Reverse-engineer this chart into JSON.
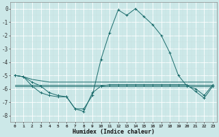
{
  "x": [
    0,
    1,
    2,
    3,
    4,
    5,
    6,
    7,
    8,
    9,
    10,
    11,
    12,
    13,
    14,
    15,
    16,
    17,
    18,
    19,
    20,
    21,
    22,
    23
  ],
  "line_main": [
    -5.0,
    -5.1,
    -5.5,
    -5.8,
    -6.3,
    -6.5,
    -6.6,
    -7.5,
    -7.5,
    -6.5,
    -3.8,
    -1.8,
    -0.1,
    -0.5,
    0.0,
    -0.6,
    -1.2,
    -2.0,
    -3.3,
    -5.0,
    -5.8,
    -6.0,
    -6.5,
    -5.7
  ],
  "line_diag": [
    -5.0,
    -5.1,
    -5.3,
    -5.4,
    -5.5,
    -5.5,
    -5.5,
    -5.5,
    -5.5,
    -5.5,
    -5.5,
    -5.5,
    -5.5,
    -5.5,
    -5.5,
    -5.5,
    -5.5,
    -5.5,
    -5.5,
    -5.5,
    -5.5,
    -5.5,
    -5.5,
    -5.5
  ],
  "line_flat1": [
    -5.7,
    -5.7,
    -5.7,
    -5.7,
    -5.7,
    -5.7,
    -5.7,
    -5.7,
    -5.7,
    -5.7,
    -5.7,
    -5.7,
    -5.7,
    -5.7,
    -5.7,
    -5.7,
    -5.7,
    -5.7,
    -5.7,
    -5.7,
    -5.7,
    -5.7,
    -5.7,
    -5.7
  ],
  "line_flat2": [
    -5.8,
    -5.8,
    -5.8,
    -5.8,
    -5.8,
    -5.8,
    -5.8,
    -5.8,
    -5.8,
    -5.8,
    -5.8,
    -5.8,
    -5.8,
    -5.8,
    -5.8,
    -5.8,
    -5.8,
    -5.8,
    -5.8,
    -5.8,
    -5.8,
    -5.8,
    -5.8,
    -5.8
  ],
  "line_v": [
    -5.0,
    -5.1,
    -5.8,
    -6.3,
    -6.5,
    -6.6,
    -6.6,
    -7.5,
    -7.7,
    -6.3,
    -5.8,
    -5.7,
    -5.7,
    -5.7,
    -5.7,
    -5.7,
    -5.7,
    -5.7,
    -5.7,
    -5.7,
    -5.7,
    -6.2,
    -6.7,
    -5.8
  ],
  "bg_color": "#cce8e8",
  "grid_color": "#b8d8d8",
  "line_color": "#1a6b6b",
  "xlabel": "Humidex (Indice chaleur)",
  "ylim": [
    -8.5,
    0.5
  ],
  "xlim": [
    -0.5,
    23.5
  ]
}
